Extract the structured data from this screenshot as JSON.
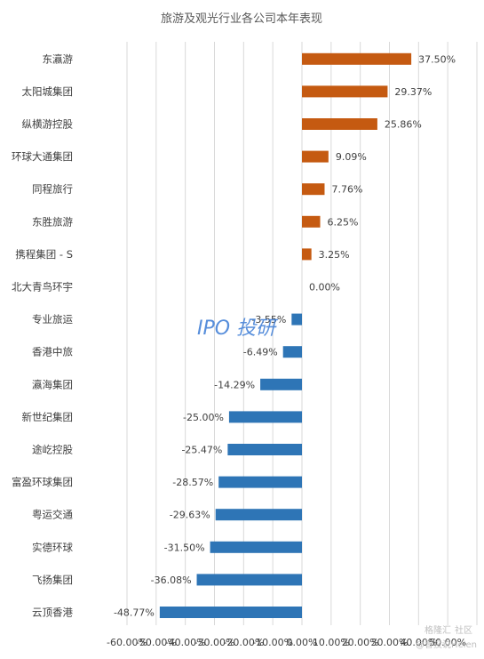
{
  "chart_data": {
    "type": "bar",
    "orientation": "horizontal",
    "title": "旅游及观光行业各公司本年表现",
    "categories": [
      "东瀛游",
      "太阳城集团",
      "纵横游控股",
      "环球大通集团",
      "同程旅行",
      "东胜旅游",
      "携程集团 - S",
      "北大青鸟环宇",
      "专业旅运",
      "香港中旅",
      "瀛海集团",
      "新世纪集团",
      "途屹控股",
      "富盈环球集团",
      "粤运交通",
      "实德环球",
      "飞扬集团",
      "云顶香港"
    ],
    "values": [
      37.5,
      29.37,
      25.86,
      9.09,
      7.76,
      6.25,
      3.25,
      0.0,
      -3.55,
      -6.49,
      -14.29,
      -25.0,
      -25.47,
      -28.57,
      -29.63,
      -31.5,
      -36.08,
      -48.77
    ],
    "value_labels": [
      "37.50%",
      "29.37%",
      "25.86%",
      "9.09%",
      "7.76%",
      "6.25%",
      "3.25%",
      "0.00%",
      "-3.55%",
      "-6.49%",
      "-14.29%",
      "-25.00%",
      "-25.47%",
      "-28.57%",
      "-29.63%",
      "-31.50%",
      "-36.08%",
      "-48.77%"
    ],
    "xlim": [
      -60,
      60
    ],
    "xticks": [
      -60,
      -50,
      -40,
      -30,
      -20,
      -10,
      0,
      10,
      20,
      30,
      40,
      50
    ],
    "xtick_labels": [
      "-60.00%",
      "-50.00%",
      "-40.00%",
      "-30.00%",
      "-20.00%",
      "-10.00%",
      "0.00%",
      "10.00%",
      "20.00%",
      "30.00%",
      "40.00%",
      "50.00%"
    ],
    "grid": true,
    "colors": {
      "positive": "#c55a11",
      "negative": "#2e75b6"
    }
  },
  "watermarks": {
    "center": "IPO 投研",
    "corner_brand": "格隆汇",
    "corner_site": "社区",
    "corner_author": "@智投说Helen"
  }
}
